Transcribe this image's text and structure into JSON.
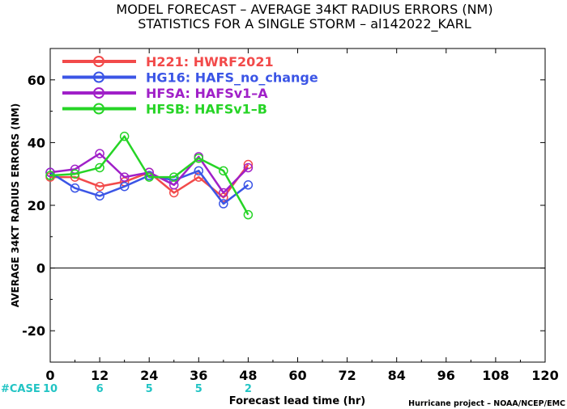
{
  "chart_data": {
    "type": "line",
    "title": "MODEL FORECAST – AVERAGE 34KT RADIUS ERRORS (NM)",
    "subtitle": "STATISTICS FOR A SINGLE STORM – al142022_KARL",
    "xlabel": "Forecast lead time (hr)",
    "ylabel": "AVERAGE 34KT RADIUS ERRORS (NM)",
    "xlim": [
      0,
      120
    ],
    "ylim": [
      -30,
      70
    ],
    "x_ticks": [
      0,
      12,
      24,
      36,
      48,
      60,
      72,
      84,
      96,
      108,
      120
    ],
    "y_ticks": [
      -20,
      0,
      20,
      40,
      60
    ],
    "grid": false,
    "legend_position": "top-left",
    "zero_line": true,
    "series": [
      {
        "name": "H221: HWRF2021",
        "color": "#f24a4a",
        "x": [
          0,
          6,
          12,
          18,
          24,
          30,
          36,
          42,
          48
        ],
        "y": [
          29,
          29,
          26,
          27.5,
          30.5,
          24,
          29,
          22.5,
          33
        ]
      },
      {
        "name": "HG16: HAFS_no_change",
        "color": "#3b55e6",
        "x": [
          0,
          6,
          12,
          18,
          24,
          30,
          36,
          42,
          48
        ],
        "y": [
          30.5,
          25.5,
          23,
          26,
          29.5,
          28,
          31,
          20.5,
          26.5
        ]
      },
      {
        "name": "HFSA: HAFSv1–A",
        "color": "#a020c8",
        "x": [
          0,
          6,
          12,
          18,
          24,
          30,
          36,
          42,
          48
        ],
        "y": [
          30.5,
          31.5,
          36.5,
          29,
          30.5,
          26.5,
          35.5,
          24,
          32
        ]
      },
      {
        "name": "HFSB: HAFSv1–B",
        "color": "#26d426",
        "x": [
          0,
          6,
          12,
          18,
          24,
          30,
          36,
          42,
          48
        ],
        "y": [
          29.5,
          30,
          32,
          42,
          29,
          29,
          35,
          31,
          17
        ]
      }
    ],
    "case_counts": {
      "label": "#CASE",
      "x": [
        0,
        12,
        24,
        36,
        48
      ],
      "values": [
        "10",
        "6",
        "5",
        "5",
        "2"
      ],
      "color": "#22c4c4"
    },
    "credit": "Hurricane project – NOAA/NCEP/EMC"
  }
}
